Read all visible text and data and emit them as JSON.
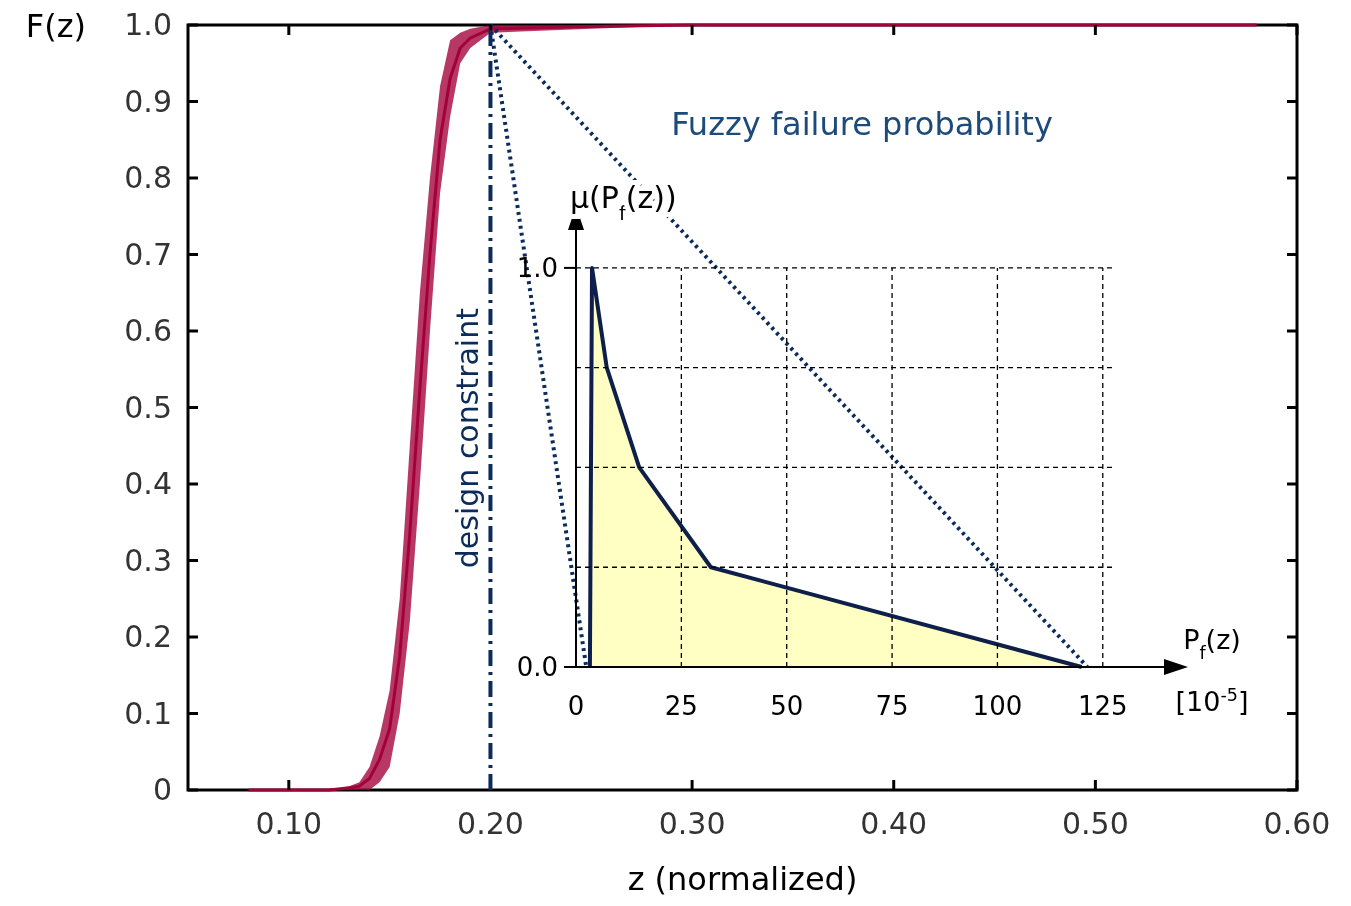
{
  "chart_data": [
    {
      "type": "line",
      "ylabel": "F(z)",
      "xlabel": "z (normalized)",
      "xlim": [
        0.05,
        0.6
      ],
      "ylim": [
        0,
        1
      ],
      "xticks": [
        {
          "value": 0.1,
          "label": "0.10"
        },
        {
          "value": 0.2,
          "label": "0.20"
        },
        {
          "value": 0.3,
          "label": "0.30"
        },
        {
          "value": 0.4,
          "label": "0.40"
        },
        {
          "value": 0.5,
          "label": "0.50"
        },
        {
          "value": 0.6,
          "label": "0.60"
        }
      ],
      "yticks": [
        0,
        0.1,
        0.2,
        0.3,
        0.4,
        0.5,
        0.6,
        0.7,
        0.8,
        0.9,
        {
          "value": 1,
          "label": "1.0"
        }
      ],
      "grid": false,
      "series": [
        {
          "color": "#a3003a",
          "x": [
            0.08,
            0.12,
            0.13,
            0.135,
            0.14,
            0.145,
            0.15,
            0.155,
            0.16,
            0.165,
            0.17,
            0.175,
            0.18,
            0.185,
            0.19,
            0.2,
            0.25,
            0.3,
            0.58
          ],
          "values": [
            0,
            0,
            0.003,
            0.005,
            0.015,
            0.04,
            0.08,
            0.175,
            0.335,
            0.525,
            0.7,
            0.85,
            0.93,
            0.97,
            0.983,
            0.995,
            0.998,
            1,
            1
          ],
          "lower": [
            0,
            0,
            0,
            0,
            0,
            0.01,
            0.03,
            0.1,
            0.22,
            0.4,
            0.6,
            0.78,
            0.88,
            0.95,
            0.97,
            0.99,
            0.995,
            1,
            1
          ],
          "upper": [
            0,
            0,
            0.005,
            0.01,
            0.03,
            0.07,
            0.13,
            0.25,
            0.45,
            0.65,
            0.8,
            0.92,
            0.98,
            0.99,
            0.995,
            1,
            1,
            1,
            1
          ]
        },
        {
          "color": "#0b2c5a",
          "line_style": "dotted",
          "x": [
            0.2,
            0.2475
          ],
          "values": [
            1,
            0.161
          ]
        },
        {
          "color": "#0b2c5a",
          "line_style": "dotted",
          "x": [
            0.2,
            0.496
          ],
          "values": [
            1,
            0.161
          ]
        }
      ],
      "ref_lines": [
        {
          "axis": "x",
          "value": 0.2,
          "label": "design constraint",
          "color": "#0b2c5a",
          "line_style": "dashdot"
        }
      ]
    },
    {
      "type": "area",
      "title": "Fuzzy failure probability",
      "ylabel": "μ(P$_{f}$(z))",
      "xlabel": "P$_{f}$(z) [10$^{-5}$]",
      "xlim": [
        0,
        140
      ],
      "ylim": [
        0,
        1.1
      ],
      "xticks": [
        0,
        25,
        50,
        75,
        100,
        125
      ],
      "yticks": [
        {
          "value": 0,
          "label": "0.0"
        },
        {
          "value": 0.25,
          "label": null
        },
        {
          "value": 0.5,
          "label": null
        },
        {
          "value": 0.75,
          "label": null
        },
        {
          "value": 1,
          "label": "1.0"
        }
      ],
      "grid": true,
      "series": [
        {
          "color": "#ffffc4",
          "x": [
            3.3,
            3.8,
            7.3,
            15,
            32,
            120
          ],
          "values": [
            0,
            1,
            0.75,
            0.5,
            0.25,
            0
          ]
        }
      ]
    }
  ]
}
